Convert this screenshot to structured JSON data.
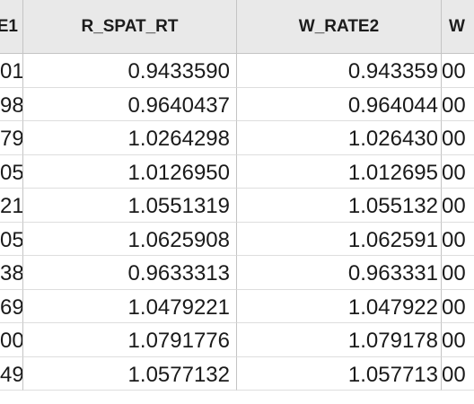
{
  "table": {
    "headers": [
      "E1",
      "R_SPAT_RT",
      "W_RATE2",
      "W"
    ],
    "rows": [
      [
        "01",
        "0.9433590",
        "0.943359",
        "00"
      ],
      [
        "98",
        "0.9640437",
        "0.964044",
        "00"
      ],
      [
        "79",
        "1.0264298",
        "1.026430",
        "00"
      ],
      [
        "05",
        "1.0126950",
        "1.012695",
        "00"
      ],
      [
        "21",
        "1.0551319",
        "1.055132",
        "00"
      ],
      [
        "05",
        "1.0625908",
        "1.062591",
        "00"
      ],
      [
        "38",
        "0.9633313",
        "0.963331",
        "00"
      ],
      [
        "69",
        "1.0479221",
        "1.047922",
        "00"
      ],
      [
        "00",
        "1.0791776",
        "1.079178",
        "00"
      ],
      [
        "49",
        "1.0577132",
        "1.057713",
        "00"
      ]
    ]
  }
}
